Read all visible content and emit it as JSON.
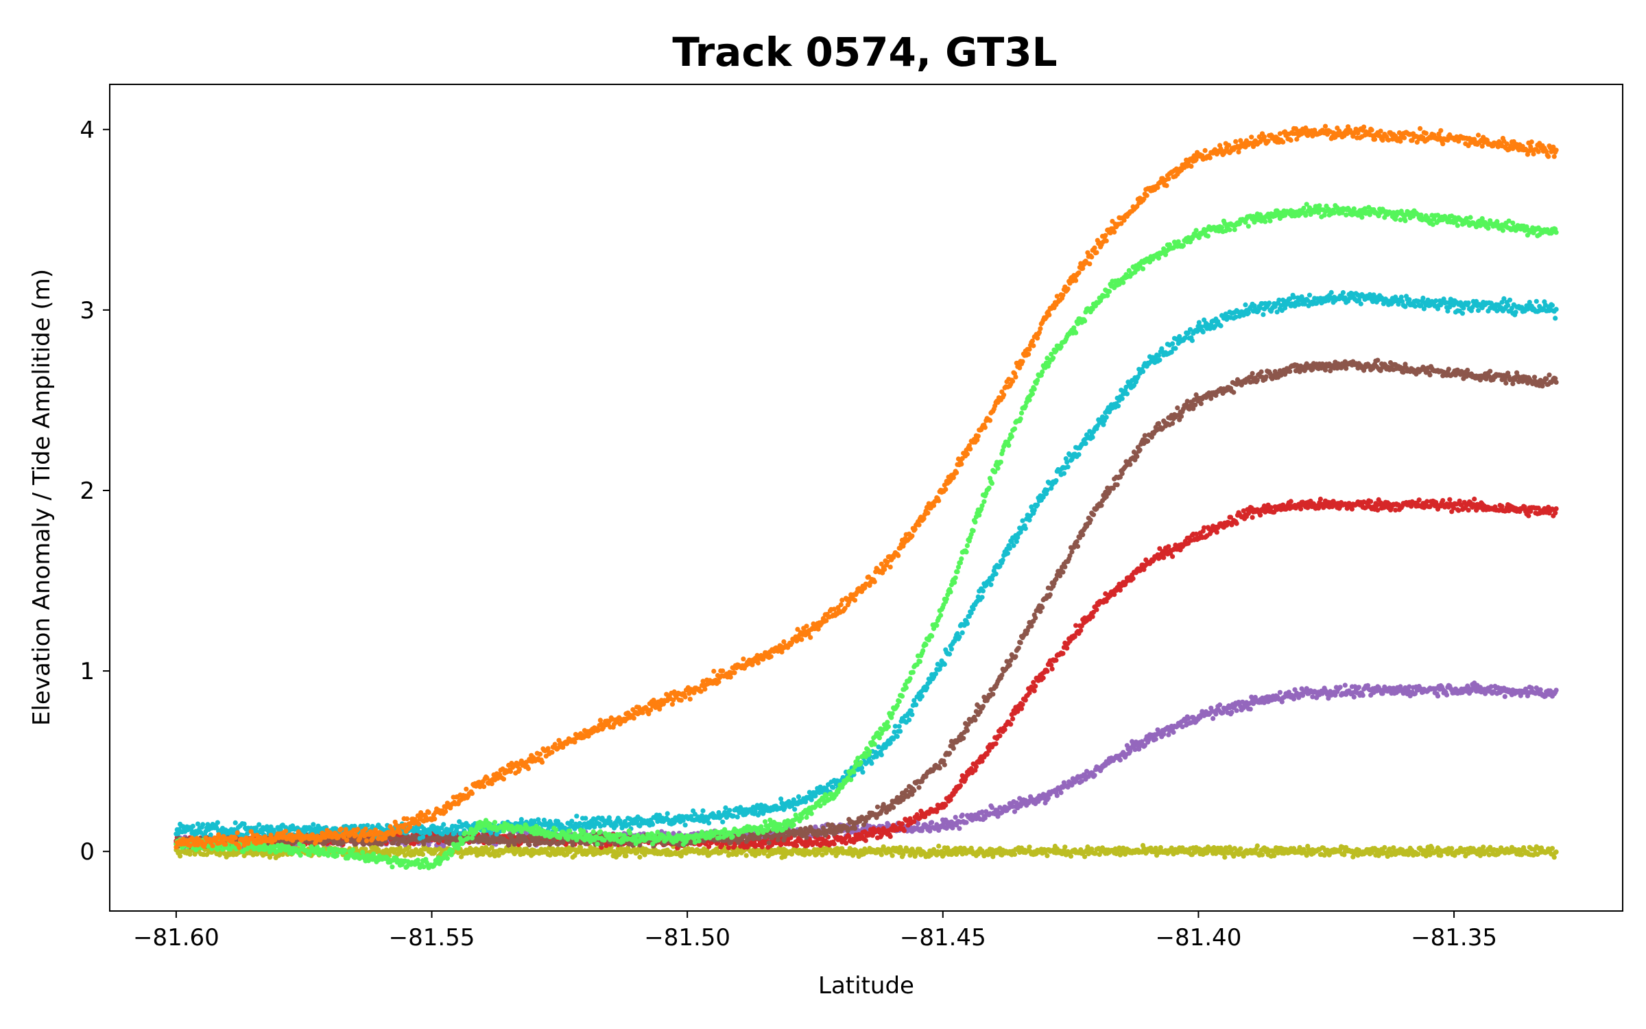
{
  "chart_data": {
    "type": "scatter",
    "title": "Track 0574, GT3L",
    "xlabel": "Latitude",
    "ylabel": "Elevation Anomaly / Tide Amplitide (m)",
    "xlim": [
      -81.613,
      -81.317
    ],
    "ylim": [
      -0.33,
      4.25
    ],
    "xticks": [
      -81.6,
      -81.55,
      -81.5,
      -81.45,
      -81.4,
      -81.35
    ],
    "xtick_labels": [
      "−81.60",
      "−81.55",
      "−81.50",
      "−81.45",
      "−81.40",
      "−81.35"
    ],
    "yticks": [
      0,
      1,
      2,
      3,
      4
    ],
    "ytick_labels": [
      "0",
      "1",
      "2",
      "3",
      "4"
    ],
    "grid": false,
    "legend": "none",
    "x_range": [
      -81.6,
      -81.33
    ],
    "series": [
      {
        "color": "#bcbd22",
        "noise": 0.025,
        "x": [
          -81.6,
          -81.55,
          -81.5,
          -81.45,
          -81.4,
          -81.35,
          -81.33
        ],
        "y": [
          0.0,
          0.0,
          0.0,
          0.0,
          0.0,
          0.0,
          0.0
        ]
      },
      {
        "color": "#9467bd",
        "noise": 0.03,
        "x": [
          -81.6,
          -81.55,
          -81.5,
          -81.47,
          -81.45,
          -81.43,
          -81.42,
          -81.41,
          -81.4,
          -81.39,
          -81.38,
          -81.35,
          -81.33
        ],
        "y": [
          0.05,
          0.07,
          0.08,
          0.12,
          0.14,
          0.3,
          0.45,
          0.62,
          0.75,
          0.82,
          0.88,
          0.9,
          0.88
        ]
      },
      {
        "color": "#d62728",
        "noise": 0.03,
        "x": [
          -81.6,
          -81.55,
          -81.5,
          -81.47,
          -81.46,
          -81.45,
          -81.44,
          -81.43,
          -81.42,
          -81.41,
          -81.4,
          -81.39,
          -81.38,
          -81.35,
          -81.33
        ],
        "y": [
          0.05,
          0.08,
          0.05,
          0.06,
          0.12,
          0.25,
          0.6,
          1.0,
          1.35,
          1.6,
          1.75,
          1.88,
          1.92,
          1.92,
          1.88
        ]
      },
      {
        "color": "#8c564b",
        "noise": 0.03,
        "x": [
          -81.6,
          -81.55,
          -81.5,
          -81.47,
          -81.46,
          -81.45,
          -81.44,
          -81.43,
          -81.42,
          -81.41,
          -81.4,
          -81.39,
          -81.38,
          -81.37,
          -81.35,
          -81.33
        ],
        "y": [
          0.05,
          0.07,
          0.06,
          0.12,
          0.25,
          0.5,
          0.9,
          1.4,
          1.9,
          2.3,
          2.5,
          2.62,
          2.68,
          2.7,
          2.65,
          2.6
        ]
      },
      {
        "color": "#17becf",
        "noise": 0.035,
        "x": [
          -81.6,
          -81.55,
          -81.5,
          -81.48,
          -81.47,
          -81.465,
          -81.46,
          -81.45,
          -81.44,
          -81.43,
          -81.42,
          -81.41,
          -81.4,
          -81.39,
          -81.38,
          -81.37,
          -81.35,
          -81.33
        ],
        "y": [
          0.12,
          0.12,
          0.18,
          0.25,
          0.38,
          0.5,
          0.62,
          1.05,
          1.55,
          2.0,
          2.35,
          2.7,
          2.9,
          3.0,
          3.05,
          3.07,
          3.03,
          3.0
        ]
      },
      {
        "color": "#55f55a",
        "noise": 0.03,
        "x": [
          -81.6,
          -81.57,
          -81.55,
          -81.54,
          -81.52,
          -81.5,
          -81.48,
          -81.47,
          -81.46,
          -81.45,
          -81.44,
          -81.43,
          -81.42,
          -81.41,
          -81.4,
          -81.39,
          -81.38,
          -81.37,
          -81.35,
          -81.33
        ],
        "y": [
          0.05,
          0.0,
          -0.08,
          0.15,
          0.08,
          0.07,
          0.15,
          0.35,
          0.75,
          1.35,
          2.1,
          2.7,
          3.05,
          3.28,
          3.42,
          3.5,
          3.55,
          3.55,
          3.5,
          3.43
        ]
      },
      {
        "color": "#ff7f0e",
        "noise": 0.035,
        "x": [
          -81.6,
          -81.56,
          -81.55,
          -81.54,
          -81.52,
          -81.5,
          -81.48,
          -81.47,
          -81.46,
          -81.45,
          -81.44,
          -81.43,
          -81.42,
          -81.41,
          -81.4,
          -81.39,
          -81.38,
          -81.37,
          -81.35,
          -81.33
        ],
        "y": [
          0.05,
          0.1,
          0.2,
          0.38,
          0.65,
          0.88,
          1.15,
          1.35,
          1.62,
          2.0,
          2.45,
          2.95,
          3.35,
          3.65,
          3.85,
          3.93,
          3.98,
          3.98,
          3.95,
          3.88
        ]
      }
    ]
  }
}
